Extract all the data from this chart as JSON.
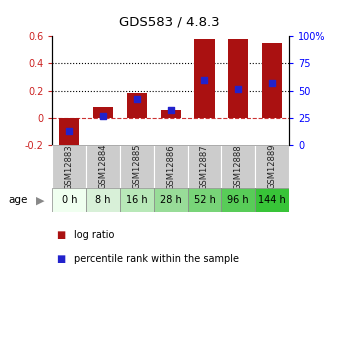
{
  "title": "GDS583 / 4.8.3",
  "samples": [
    "GSM12883",
    "GSM12884",
    "GSM12885",
    "GSM12886",
    "GSM12887",
    "GSM12888",
    "GSM12889"
  ],
  "ages": [
    "0 h",
    "8 h",
    "16 h",
    "28 h",
    "52 h",
    "96 h",
    "144 h"
  ],
  "log_ratio": [
    -0.22,
    0.08,
    0.18,
    0.06,
    0.58,
    0.58,
    0.55
  ],
  "percentile_rank": [
    0.13,
    0.27,
    0.42,
    0.32,
    0.595,
    0.515,
    0.57
  ],
  "bar_color": "#aa1111",
  "dot_color": "#2222cc",
  "ylim_left": [
    -0.2,
    0.6
  ],
  "dotted_lines": [
    0.2,
    0.4
  ],
  "age_colors": [
    "#f0fff0",
    "#d8f0d8",
    "#b8e8b8",
    "#98dc98",
    "#78d478",
    "#58cc58",
    "#38c438"
  ],
  "sample_box_color": "#cccccc"
}
